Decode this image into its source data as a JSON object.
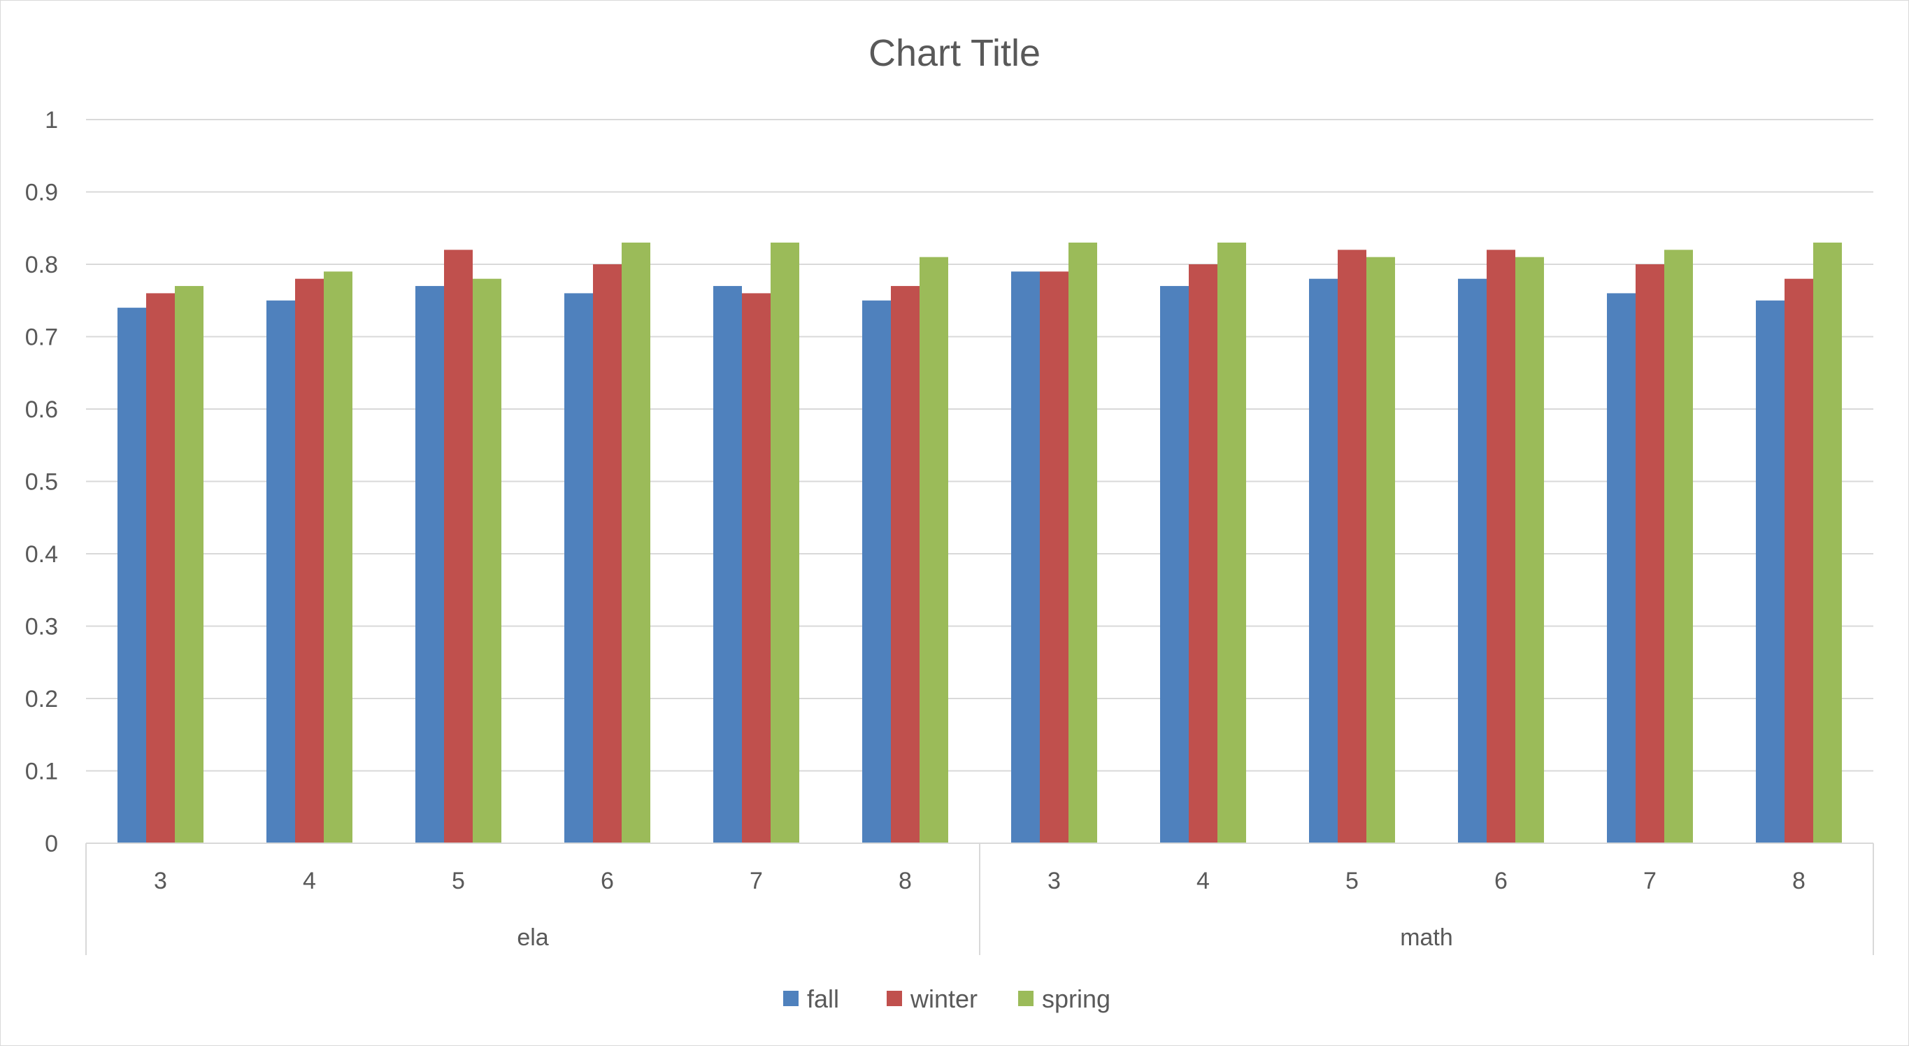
{
  "chart_data": {
    "type": "bar",
    "title": "Chart Title",
    "xlabel": "",
    "ylabel": "",
    "ylim": [
      0,
      1
    ],
    "yticks": [
      "0",
      "0.1",
      "0.2",
      "0.3",
      "0.4",
      "0.5",
      "0.6",
      "0.7",
      "0.8",
      "0.9",
      "1"
    ],
    "groups": [
      {
        "name": "ela",
        "categories": [
          "3",
          "4",
          "5",
          "6",
          "7",
          "8"
        ]
      },
      {
        "name": "math",
        "categories": [
          "3",
          "4",
          "5",
          "6",
          "7",
          "8"
        ]
      }
    ],
    "series": [
      {
        "name": "fall",
        "color": "#4F81BD",
        "values": [
          0.74,
          0.75,
          0.77,
          0.76,
          0.77,
          0.75,
          0.79,
          0.77,
          0.78,
          0.78,
          0.76,
          0.75
        ]
      },
      {
        "name": "winter",
        "color": "#C0504D",
        "values": [
          0.76,
          0.78,
          0.82,
          0.8,
          0.76,
          0.77,
          0.79,
          0.8,
          0.82,
          0.82,
          0.8,
          0.78
        ]
      },
      {
        "name": "spring",
        "color": "#9BBB59",
        "values": [
          0.77,
          0.79,
          0.78,
          0.83,
          0.83,
          0.81,
          0.83,
          0.83,
          0.81,
          0.81,
          0.82,
          0.83
        ]
      }
    ],
    "grid": true,
    "legend_position": "bottom"
  }
}
